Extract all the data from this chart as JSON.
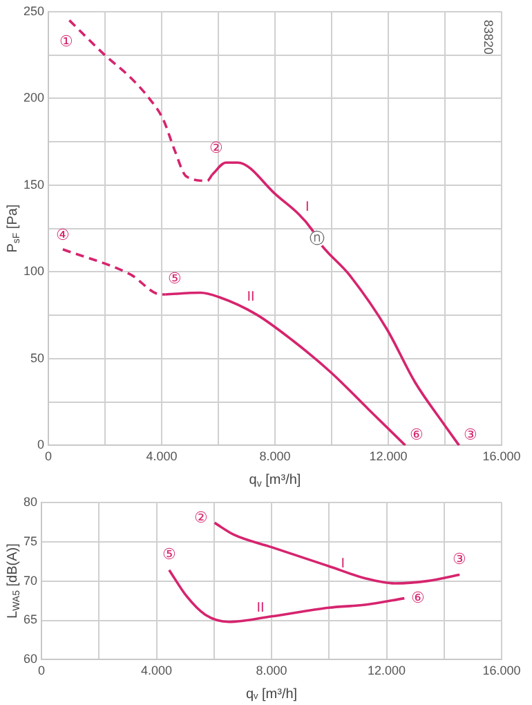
{
  "chart_data": [
    {
      "type": "line",
      "xlabel": "q$_{v}$ [m³/h]",
      "ylabel": "P$_{sF}$ [Pa]",
      "xlim": [
        0,
        16000
      ],
      "xticks": [
        0,
        {
          "value": 2000,
          "label": null
        },
        {
          "value": 4000,
          "label": "4.000"
        },
        {
          "value": 6000,
          "label": null
        },
        {
          "value": 8000,
          "label": "8.000"
        },
        {
          "value": 10000,
          "label": null
        },
        {
          "value": 12000,
          "label": "12.000"
        },
        {
          "value": 14000,
          "label": null
        },
        {
          "value": 16000,
          "label": "16.000"
        }
      ],
      "ylim": [
        0,
        250
      ],
      "yticks": [
        0,
        {
          "value": 25,
          "label": null
        },
        50,
        {
          "value": 75,
          "label": null
        },
        100,
        {
          "value": 125,
          "label": null
        },
        150,
        {
          "value": 175,
          "label": null
        },
        200,
        {
          "value": 225,
          "label": null
        },
        250
      ],
      "grid": true,
      "marker": "none",
      "series": [
        {
          "color": "#d6246e",
          "line_style": "dashed",
          "x": [
            740,
            1990,
            2900,
            3560,
            4050,
            4460,
            4870,
            5610,
            5780
          ],
          "values": [
            245,
            225,
            212,
            200,
            188,
            170,
            155,
            152.5,
            156
          ]
        },
        {
          "name": "I",
          "color": "#d6246e",
          "line_style": "solid",
          "x": [
            5780,
            6270,
            6680,
            8000,
            9320,
            9480,
            10640,
            11950,
            12940,
            13930,
            14500
          ],
          "values": [
            156,
            163,
            163,
            145,
            124,
            119,
            98,
            67,
            36.5,
            13,
            0
          ]
        },
        {
          "color": "#d6246e",
          "line_style": "dashed",
          "x": [
            510,
            2900,
            3970,
            4130
          ],
          "values": [
            113,
            98.5,
            87,
            87
          ]
        },
        {
          "name": "II",
          "color": "#d6246e",
          "line_style": "solid",
          "x": [
            4130,
            5370,
            6020,
            7340,
            8660,
            9980,
            11290,
            12600
          ],
          "values": [
            87,
            88,
            85.5,
            75.5,
            60,
            42,
            21,
            0
          ]
        }
      ],
      "annotations": [
        {
          "text": "①",
          "x": 740,
          "y": 245
        },
        {
          "text": "②",
          "x": 5780,
          "y": 156
        },
        {
          "text": "ⓝ",
          "x": 9480,
          "y": 119
        },
        {
          "text": "③",
          "x": 14500,
          "y": 0
        },
        {
          "text": "④",
          "x": 510,
          "y": 113
        },
        {
          "text": "⑤",
          "x": 4130,
          "y": 87
        },
        {
          "text": "⑥",
          "x": 12600,
          "y": 0
        },
        "83820"
      ]
    },
    {
      "type": "line",
      "xlabel": "qᵥ [m³/h]",
      "ylabel": "L$_{WA5}$ [dB(A)]",
      "xlim": [
        0,
        16000
      ],
      "xticks": [
        0,
        {
          "value": 2000,
          "label": null
        },
        {
          "value": 4000,
          "label": "4.000"
        },
        {
          "value": 6000,
          "label": null
        },
        {
          "value": 8000,
          "label": "8.000"
        },
        {
          "value": 10000,
          "label": null
        },
        {
          "value": 12000,
          "label": "12.000"
        },
        {
          "value": 14000,
          "label": null
        },
        {
          "value": 16000,
          "label": "16.000"
        }
      ],
      "ylim": [
        60,
        80
      ],
      "yticks": [
        60,
        65,
        70,
        75,
        80
      ],
      "grid": true,
      "marker": "none",
      "series": [
        {
          "name": "I",
          "color": "#d6246e",
          "line_style": "solid",
          "x": [
            6020,
            6680,
            8000,
            9980,
            11300,
            12280,
            13420,
            14540
          ],
          "values": [
            77.4,
            75.9,
            74.3,
            71.9,
            70.3,
            69.7,
            70,
            70.8
          ]
        },
        {
          "name": "II",
          "color": "#d6246e",
          "line_style": "solid",
          "x": [
            4440,
            5040,
            5700,
            6520,
            8000,
            9980,
            11300,
            12620
          ],
          "values": [
            71.4,
            68.1,
            65.7,
            64.8,
            65.5,
            66.6,
            67,
            67.8
          ]
        }
      ],
      "annotations": [
        {
          "text": "②",
          "x": 6020,
          "y": 77.4
        },
        {
          "text": "③",
          "x": 14540,
          "y": 70.8
        },
        {
          "text": "⑤",
          "x": 4440,
          "y": 71.4
        },
        {
          "text": "⑥",
          "x": 12620,
          "y": 67.8
        }
      ]
    }
  ]
}
